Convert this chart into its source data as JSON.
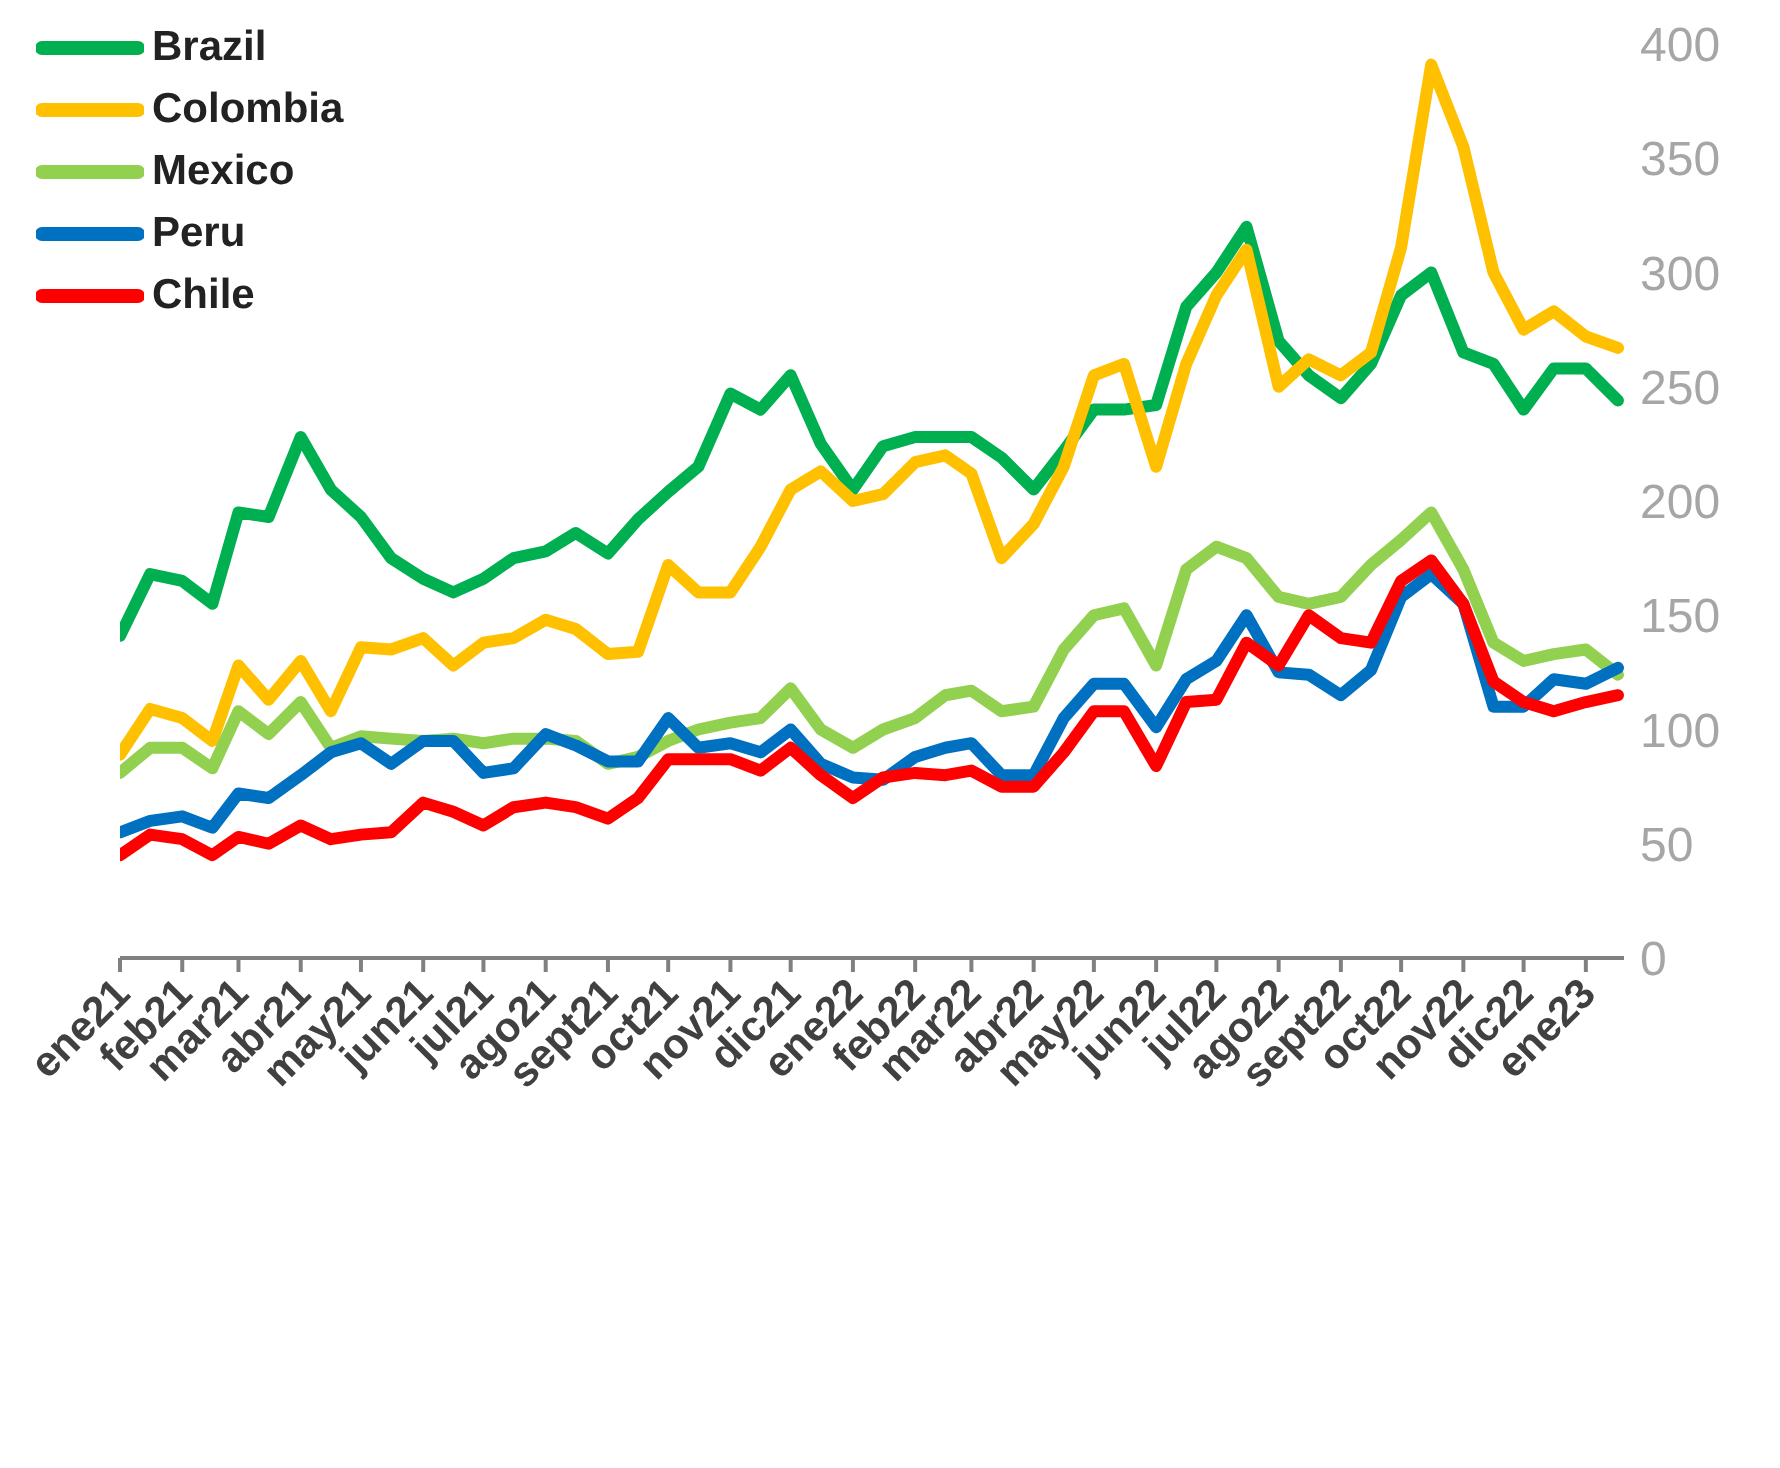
{
  "chart_data": {
    "type": "line",
    "x": [
      "2021-01-01",
      "2021-01-16",
      "2021-02-01",
      "2021-02-16",
      "2021-03-01",
      "2021-03-16",
      "2021-04-01",
      "2021-04-16",
      "2021-05-01",
      "2021-05-16",
      "2021-06-01",
      "2021-06-16",
      "2021-07-01",
      "2021-07-16",
      "2021-08-01",
      "2021-08-16",
      "2021-09-01",
      "2021-09-16",
      "2021-10-01",
      "2021-10-16",
      "2021-11-01",
      "2021-11-16",
      "2021-12-01",
      "2021-12-16",
      "2022-01-01",
      "2022-01-16",
      "2022-02-01",
      "2022-02-16",
      "2022-03-01",
      "2022-03-16",
      "2022-04-01",
      "2022-04-16",
      "2022-05-01",
      "2022-05-16",
      "2022-06-01",
      "2022-06-16",
      "2022-07-01",
      "2022-07-16",
      "2022-08-01",
      "2022-08-16",
      "2022-09-01",
      "2022-09-16",
      "2022-10-01",
      "2022-10-16",
      "2022-11-01",
      "2022-11-16",
      "2022-12-01",
      "2022-12-16",
      "2023-01-01",
      "2023-01-17"
    ],
    "series": [
      {
        "name": "Brazil",
        "color": "#00b050",
        "values": [
          141,
          168,
          165,
          155,
          195,
          193,
          228,
          205,
          193,
          175,
          166,
          160,
          166,
          175,
          178,
          186,
          177,
          192,
          204,
          215,
          247,
          240,
          255,
          225,
          205,
          224,
          228,
          228,
          228,
          219,
          205,
          222,
          240,
          240,
          242,
          285,
          300,
          320,
          270,
          255,
          245,
          260,
          290,
          300,
          265,
          260,
          240,
          258,
          258,
          244
        ]
      },
      {
        "name": "Colombia",
        "color": "#ffc000",
        "values": [
          89,
          109,
          105,
          95,
          128,
          113,
          130,
          108,
          136,
          135,
          140,
          128,
          138,
          140,
          148,
          144,
          133,
          134,
          172,
          160,
          160,
          180,
          205,
          213,
          200,
          203,
          217,
          220,
          212,
          175,
          190,
          215,
          255,
          260,
          215,
          260,
          290,
          310,
          250,
          262,
          255,
          265,
          311,
          391,
          355,
          300,
          275,
          283,
          272,
          267
        ]
      },
      {
        "name": "Mexico",
        "color": "#92d050",
        "values": [
          81,
          92,
          92,
          83,
          108,
          98,
          112,
          92,
          97,
          96,
          95,
          96,
          94,
          96,
          96,
          95,
          85,
          88,
          95,
          100,
          103,
          105,
          118,
          100,
          92,
          100,
          105,
          115,
          117,
          108,
          110,
          135,
          150,
          153,
          128,
          170,
          180,
          175,
          158,
          155,
          158,
          172,
          183,
          195,
          170,
          138,
          130,
          133,
          135,
          124
        ]
      },
      {
        "name": "Peru",
        "color": "#0070c0",
        "values": [
          55,
          60,
          62,
          57,
          72,
          70,
          80,
          90,
          94,
          85,
          95,
          95,
          81,
          83,
          98,
          93,
          86,
          86,
          105,
          92,
          94,
          90,
          100,
          85,
          79,
          78,
          88,
          92,
          94,
          80,
          80,
          105,
          120,
          120,
          101,
          122,
          130,
          150,
          125,
          124,
          115,
          126,
          158,
          168,
          155,
          110,
          110,
          122,
          120,
          127
        ]
      },
      {
        "name": "Chile",
        "color": "#ff0000",
        "values": [
          45,
          54,
          52,
          45,
          53,
          50,
          58,
          52,
          54,
          55,
          68,
          64,
          58,
          66,
          68,
          66,
          61,
          70,
          87,
          87,
          87,
          82,
          92,
          80,
          70,
          79,
          81,
          80,
          82,
          75,
          75,
          90,
          108,
          108,
          84,
          112,
          113,
          138,
          128,
          150,
          140,
          138,
          165,
          174,
          155,
          121,
          112,
          108,
          112,
          115
        ]
      }
    ],
    "xlim": [
      "2021-01-01",
      "2023-01-20"
    ],
    "xticks": [
      {
        "value": "2021-01-01",
        "label": "ene21"
      },
      {
        "value": "2021-02-01",
        "label": "feb21"
      },
      {
        "value": "2021-03-01",
        "label": "mar21"
      },
      {
        "value": "2021-04-01",
        "label": "abr21"
      },
      {
        "value": "2021-05-01",
        "label": "may21"
      },
      {
        "value": "2021-06-01",
        "label": "jun21"
      },
      {
        "value": "2021-07-01",
        "label": "jul21"
      },
      {
        "value": "2021-08-01",
        "label": "ago21"
      },
      {
        "value": "2021-09-01",
        "label": "sept21"
      },
      {
        "value": "2021-10-01",
        "label": "oct21"
      },
      {
        "value": "2021-11-01",
        "label": "nov21"
      },
      {
        "value": "2021-12-01",
        "label": "dic21"
      },
      {
        "value": "2022-01-01",
        "label": "ene22"
      },
      {
        "value": "2022-02-01",
        "label": "feb22"
      },
      {
        "value": "2022-03-01",
        "label": "mar22"
      },
      {
        "value": "2022-04-01",
        "label": "abr22"
      },
      {
        "value": "2022-05-01",
        "label": "may22"
      },
      {
        "value": "2022-06-01",
        "label": "jun22"
      },
      {
        "value": "2022-07-01",
        "label": "jul22"
      },
      {
        "value": "2022-08-01",
        "label": "ago22"
      },
      {
        "value": "2022-09-01",
        "label": "sept22"
      },
      {
        "value": "2022-10-01",
        "label": "oct22"
      },
      {
        "value": "2022-11-01",
        "label": "nov22"
      },
      {
        "value": "2022-12-01",
        "label": "dic22"
      },
      {
        "value": "2023-01-01",
        "label": "ene23"
      }
    ],
    "ylim": [
      0,
      400
    ],
    "yticks": [
      0,
      50,
      100,
      150,
      200,
      250,
      300,
      350,
      400
    ],
    "grid": false,
    "legend": "top left",
    "marker": "none",
    "line_style": "solid"
  }
}
